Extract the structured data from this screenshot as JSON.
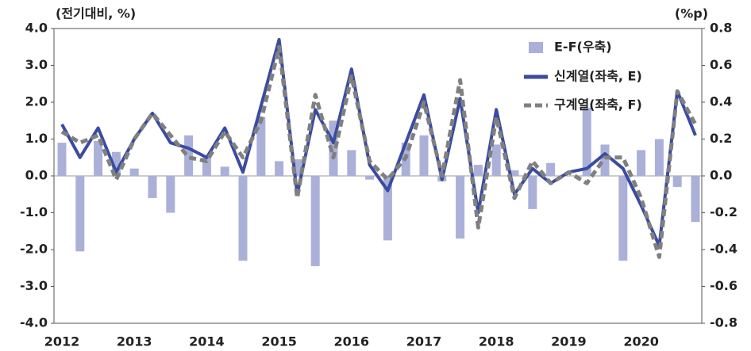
{
  "chart_data": {
    "type": "bar-line",
    "y_label": "(전기대비, %)",
    "y2_label": "(%p)",
    "categories": [
      "2012",
      null,
      null,
      null,
      "2013",
      null,
      null,
      null,
      "2014",
      null,
      null,
      null,
      "2015",
      null,
      null,
      null,
      "2016",
      null,
      null,
      null,
      "2017",
      null,
      null,
      null,
      "2018",
      null,
      null,
      null,
      "2019",
      null,
      null,
      null,
      "2020",
      null,
      null,
      null
    ],
    "series": [
      {
        "name": "E-F(우축)",
        "type": "bar",
        "axis": "y2",
        "color": "#aab0d8",
        "values": [
          0.18,
          -0.41,
          0.19,
          0.13,
          0.04,
          -0.12,
          -0.2,
          0.22,
          0.1,
          0.05,
          -0.46,
          0.32,
          0.08,
          0.09,
          -0.49,
          0.3,
          0.14,
          -0.02,
          -0.35,
          0.18,
          0.22,
          -0.03,
          -0.34,
          0.06,
          0.17,
          0.03,
          -0.18,
          0.07,
          0.0,
          0.37,
          0.17,
          -0.46,
          0.14,
          0.2,
          -0.06,
          -0.25
        ]
      },
      {
        "name": "신계열(좌축, E)",
        "type": "line",
        "color": "#3a4ba0",
        "dash": false,
        "values": [
          1.4,
          0.5,
          1.3,
          0.1,
          1.0,
          1.7,
          0.9,
          0.75,
          0.5,
          1.3,
          0.1,
          1.9,
          3.7,
          -0.5,
          1.8,
          0.9,
          2.9,
          0.3,
          -0.4,
          0.9,
          2.2,
          -0.1,
          2.1,
          -1.0,
          1.8,
          -0.5,
          0.2,
          -0.2,
          0.1,
          0.2,
          0.6,
          0.2,
          -0.8,
          -1.9,
          2.3,
          1.1
        ]
      },
      {
        "name": "구계열(좌축, F)",
        "type": "line",
        "color": "#808080",
        "dash": true,
        "values": [
          1.2,
          0.9,
          1.1,
          -0.1,
          1.0,
          1.7,
          1.1,
          0.5,
          0.4,
          1.2,
          0.5,
          1.5,
          3.5,
          -0.6,
          2.2,
          0.5,
          2.7,
          0.4,
          -0.1,
          0.5,
          2.0,
          0.0,
          2.6,
          -1.4,
          1.6,
          -0.6,
          0.4,
          -0.2,
          0.1,
          -0.2,
          0.5,
          0.5,
          -0.6,
          -2.2,
          2.3,
          1.4
        ]
      }
    ],
    "ylim": [
      -4,
      4
    ],
    "yticks": [
      {
        "value": -4,
        "label": "-4.0"
      },
      {
        "value": -3,
        "label": "-3.0"
      },
      {
        "value": -2,
        "label": "-2.0"
      },
      {
        "value": -1,
        "label": "-1.0"
      },
      {
        "value": 0,
        "label": "0.0"
      },
      {
        "value": 1,
        "label": "1.0"
      },
      {
        "value": 2,
        "label": "2.0"
      },
      {
        "value": 3,
        "label": "3.0"
      },
      {
        "value": 4,
        "label": "4.0"
      }
    ],
    "y2lim": [
      -0.8,
      0.8
    ],
    "y2ticks": [
      -0.8,
      -0.6,
      -0.4,
      -0.2,
      {
        "value": 0,
        "label": "0.0"
      },
      0.2,
      0.4,
      0.6,
      0.8
    ],
    "legend": "top-right"
  }
}
